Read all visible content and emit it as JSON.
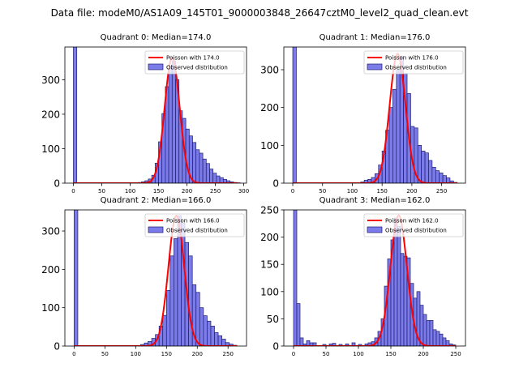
{
  "suptitle": "Data file: modeM0/AS1A09_145T01_9000003848_26647cztM0_level2_quad_clean.evt",
  "colors": {
    "bar_fill": "#7b7bea",
    "bar_edge": "#1d1d6e",
    "poisson": "#ff0000"
  },
  "chart_data": [
    {
      "type": "bar",
      "title": "Quadrant 0: Median=174.0",
      "legend_position": "top-right",
      "legend": [
        "Poisson with 174.0",
        "Observed distribution"
      ],
      "xlim": [
        -15,
        305
      ],
      "ylim": [
        0,
        395
      ],
      "xticks": [
        "0",
        "50",
        "100",
        "150",
        "200",
        "250",
        "300"
      ],
      "xtick_values": [
        0,
        50,
        100,
        150,
        200,
        250,
        300
      ],
      "yticks": [
        "0",
        "100",
        "200",
        "300"
      ],
      "ytick_values": [
        0,
        100,
        200,
        300
      ],
      "bin_width": 6,
      "bin_starts": [
        0,
        108,
        114,
        120,
        126,
        132,
        138,
        144,
        150,
        156,
        162,
        168,
        174,
        180,
        186,
        192,
        198,
        204,
        210,
        216,
        222,
        228,
        234,
        240,
        246,
        252,
        258,
        264,
        270,
        276,
        282,
        288
      ],
      "values": [
        395,
        1,
        2,
        4,
        7,
        12,
        23,
        58,
        120,
        202,
        280,
        338,
        355,
        300,
        210,
        188,
        157,
        137,
        118,
        97,
        87,
        70,
        57,
        41,
        29,
        21,
        16,
        11,
        7,
        4,
        2,
        1
      ],
      "poisson_mean": 174.0,
      "poisson_peak": 365
    },
    {
      "type": "bar",
      "title": "Quadrant 1: Median=176.0",
      "legend_position": "top-right",
      "legend": [
        "Poisson with 176.0",
        "Observed distribution"
      ],
      "xlim": [
        -15,
        290
      ],
      "ylim": [
        0,
        360
      ],
      "xticks": [
        "0",
        "50",
        "100",
        "150",
        "200",
        "250"
      ],
      "xtick_values": [
        0,
        50,
        100,
        150,
        200,
        250
      ],
      "yticks": [
        "0",
        "100",
        "200",
        "300"
      ],
      "yticks_values_note": "",
      "ytick_values": [
        0,
        100,
        200,
        300
      ],
      "bin_width": 6,
      "bin_starts": [
        0,
        108,
        114,
        120,
        126,
        132,
        138,
        144,
        150,
        156,
        162,
        168,
        174,
        180,
        186,
        192,
        198,
        204,
        210,
        216,
        222,
        228,
        234,
        240,
        246,
        252,
        258,
        264,
        270
      ],
      "values": [
        360,
        1,
        3,
        8,
        10,
        15,
        25,
        48,
        85,
        140,
        200,
        248,
        300,
        335,
        290,
        237,
        150,
        146,
        100,
        85,
        80,
        60,
        42,
        33,
        27,
        20,
        14,
        6,
        2
      ],
      "poisson_mean": 176.0,
      "poisson_peak": 342
    },
    {
      "type": "bar",
      "title": "Quadrant 2: Median=166.0",
      "legend_position": "top-right",
      "legend": [
        "Poisson with 166.0",
        "Observed distribution"
      ],
      "xlim": [
        -15,
        280
      ],
      "ylim": [
        0,
        355
      ],
      "xticks": [
        "0",
        "50",
        "100",
        "150",
        "200",
        "250"
      ],
      "xtick_values": [
        0,
        50,
        100,
        150,
        200,
        250
      ],
      "yticks": [
        "0",
        "100",
        "200",
        "300"
      ],
      "ytick_values": [
        0,
        100,
        200,
        300
      ],
      "bin_width": 6,
      "bin_starts": [
        0,
        108,
        114,
        120,
        126,
        132,
        138,
        144,
        150,
        156,
        162,
        168,
        174,
        180,
        186,
        192,
        198,
        204,
        210,
        216,
        222,
        228,
        234,
        240,
        246,
        252,
        258
      ],
      "values": [
        355,
        4,
        8,
        12,
        20,
        30,
        52,
        80,
        145,
        235,
        280,
        340,
        320,
        270,
        235,
        160,
        140,
        100,
        79,
        65,
        52,
        35,
        27,
        18,
        9,
        5,
        2
      ],
      "poisson_mean": 166.0,
      "poisson_peak": 340
    },
    {
      "type": "bar",
      "title": "Quadrant 3: Median=162.0",
      "legend_position": "top-right",
      "legend": [
        "Poisson with 162.0",
        "Observed distribution"
      ],
      "xlim": [
        -15,
        265
      ],
      "ylim": [
        0,
        250
      ],
      "xticks": [
        "0",
        "50",
        "100",
        "150",
        "200",
        "250"
      ],
      "xtick_values": [
        0,
        50,
        100,
        150,
        200,
        250
      ],
      "yticks": [
        "0",
        "50",
        "100",
        "150",
        "200",
        "250"
      ],
      "ytick_values": [
        0,
        50,
        100,
        150,
        200,
        250
      ],
      "bin_width": 5,
      "bin_starts": [
        0,
        5,
        10,
        15,
        20,
        25,
        30,
        45,
        55,
        60,
        70,
        80,
        90,
        100,
        110,
        115,
        120,
        125,
        130,
        135,
        140,
        145,
        150,
        155,
        160,
        165,
        170,
        175,
        180,
        185,
        190,
        195,
        200,
        205,
        210,
        215,
        220,
        225,
        230,
        235,
        240,
        245
      ],
      "values": [
        250,
        78,
        15,
        4,
        10,
        6,
        6,
        3,
        4,
        5,
        3,
        4,
        6,
        3,
        4,
        6,
        8,
        15,
        27,
        50,
        110,
        160,
        195,
        235,
        220,
        170,
        165,
        162,
        115,
        88,
        100,
        75,
        58,
        47,
        47,
        30,
        27,
        22,
        15,
        10,
        4,
        2
      ],
      "poisson_mean": 162.0,
      "poisson_peak": 240
    }
  ]
}
